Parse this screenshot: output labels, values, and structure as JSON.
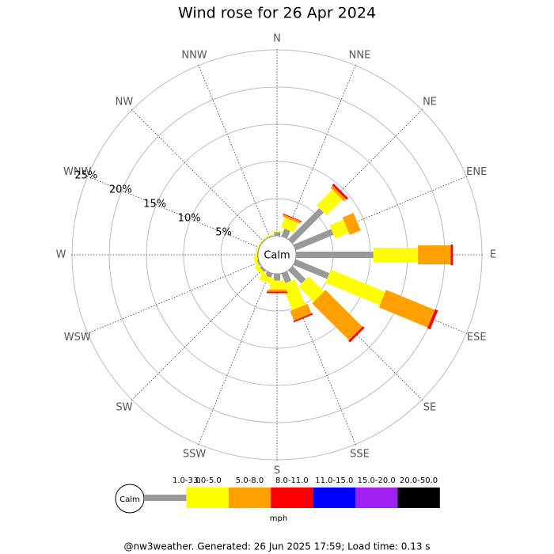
{
  "chart_data": {
    "type": "windrose",
    "title": "Wind rose for 26 Apr 2024",
    "directions": [
      "N",
      "NNE",
      "NE",
      "ENE",
      "E",
      "ESE",
      "SE",
      "SSE",
      "S",
      "SSW",
      "SW",
      "WSW",
      "W",
      "WNW",
      "NW",
      "NNW"
    ],
    "calm_label": "Calm",
    "rlim": [
      0,
      25
    ],
    "rticks": [
      {
        "value": 5,
        "label": "5%"
      },
      {
        "value": 10,
        "label": "10%"
      },
      {
        "value": 15,
        "label": "15%"
      },
      {
        "value": 20,
        "label": "20%"
      },
      {
        "value": 25,
        "label": "25%"
      }
    ],
    "series": [
      {
        "name": "1.0-3.0",
        "color": "#999999",
        "values": [
          0.5,
          1.1,
          5.9,
          5.5,
          10.4,
          4.9,
          2.5,
          1.4,
          0.9,
          0.6,
          0.3,
          0.2,
          0.1,
          0.1,
          0.1,
          0.1
        ]
      },
      {
        "name": "3.0-5.0",
        "color": "#ffff00",
        "values": [
          0.1,
          1.4,
          3.0,
          2.0,
          6.0,
          7.9,
          2.9,
          3.7,
          1.2,
          0.8,
          0.5,
          0.3,
          0.2,
          0.1,
          0.1,
          0.1
        ]
      },
      {
        "name": "5.0-8.0",
        "color": "#ff9f00",
        "values": [
          0,
          0.3,
          0.4,
          1.6,
          4.4,
          7.1,
          7.0,
          1.4,
          0.3,
          0,
          0,
          0,
          0,
          0,
          0,
          0
        ]
      },
      {
        "name": "8.0-11.0",
        "color": "#ff0000",
        "values": [
          0,
          0.1,
          0.3,
          0,
          0.3,
          0.4,
          0.3,
          0.2,
          0.2,
          0,
          0,
          0,
          0,
          0,
          0,
          0
        ]
      },
      {
        "name": "11.0-15.0",
        "color": "#0000ff",
        "values": [
          0,
          0,
          0,
          0,
          0,
          0,
          0,
          0,
          0,
          0,
          0,
          0,
          0,
          0,
          0,
          0
        ]
      },
      {
        "name": "15.0-20.0",
        "color": "#a020f0",
        "values": [
          0,
          0,
          0,
          0,
          0,
          0,
          0,
          0,
          0,
          0,
          0,
          0,
          0,
          0,
          0,
          0
        ]
      },
      {
        "name": "20.0-50.0",
        "color": "#000000",
        "values": [
          0,
          0,
          0,
          0,
          0,
          0,
          0,
          0,
          0,
          0,
          0,
          0,
          0,
          0,
          0,
          0
        ]
      }
    ],
    "legend_unit": "mph",
    "footer": "@nw3weather. Generated: 26 Jun 2025 17:59; Load time: 0.13 s"
  }
}
